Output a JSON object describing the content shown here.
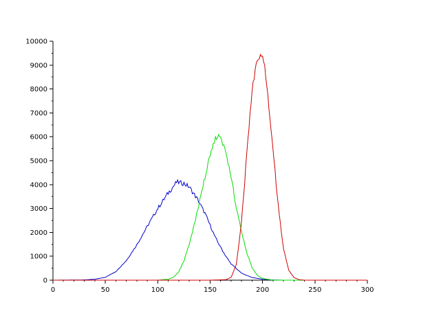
{
  "chart_data": {
    "type": "line",
    "title": "",
    "xlabel": "",
    "ylabel": "",
    "xlim": [
      0,
      300
    ],
    "ylim": [
      0,
      10000
    ],
    "grid": false,
    "legend": "none",
    "x_ticks": [
      0,
      50,
      100,
      150,
      200,
      250,
      300
    ],
    "y_ticks": [
      0,
      1000,
      2000,
      3000,
      4000,
      5000,
      6000,
      7000,
      8000,
      9000,
      10000
    ],
    "x_tick_labels": [
      "0",
      "50",
      "100",
      "150",
      "200",
      "250",
      "300"
    ],
    "y_tick_labels": [
      "0",
      "1000",
      "2000",
      "3000",
      "4000",
      "5000",
      "6000",
      "7000",
      "8000",
      "9000",
      "10000"
    ],
    "series": [
      {
        "color": "#0000cc",
        "x": [
          0,
          30,
          40,
          50,
          60,
          70,
          80,
          90,
          100,
          110,
          118,
          125,
          130,
          138,
          145,
          150,
          155,
          160,
          165,
          170,
          180,
          190,
          200,
          210,
          220,
          240,
          300
        ],
        "y": [
          0,
          10,
          40,
          120,
          360,
          820,
          1480,
          2250,
          3000,
          3650,
          4100,
          4050,
          3900,
          3380,
          2800,
          2300,
          1780,
          1380,
          1000,
          680,
          290,
          110,
          40,
          10,
          0,
          0,
          0
        ]
      },
      {
        "color": "#00dd00",
        "x": [
          0,
          100,
          110,
          115,
          120,
          125,
          130,
          135,
          140,
          145,
          150,
          155,
          158,
          160,
          165,
          170,
          175,
          180,
          185,
          190,
          195,
          200,
          210,
          220,
          300
        ],
        "y": [
          0,
          0,
          40,
          120,
          350,
          800,
          1500,
          2350,
          3300,
          4300,
          5200,
          5900,
          6150,
          6000,
          5400,
          4300,
          3050,
          2000,
          1150,
          520,
          200,
          70,
          0,
          0,
          0
        ]
      },
      {
        "color": "#cc0000",
        "x": [
          0,
          150,
          165,
          170,
          175,
          180,
          185,
          190,
          195,
          198,
          200,
          202,
          205,
          210,
          215,
          220,
          225,
          230,
          235,
          240,
          300
        ],
        "y": [
          0,
          0,
          20,
          120,
          650,
          2500,
          5300,
          8000,
          9200,
          9480,
          9350,
          8900,
          7800,
          5400,
          3100,
          1300,
          420,
          110,
          20,
          0,
          0
        ]
      }
    ]
  }
}
